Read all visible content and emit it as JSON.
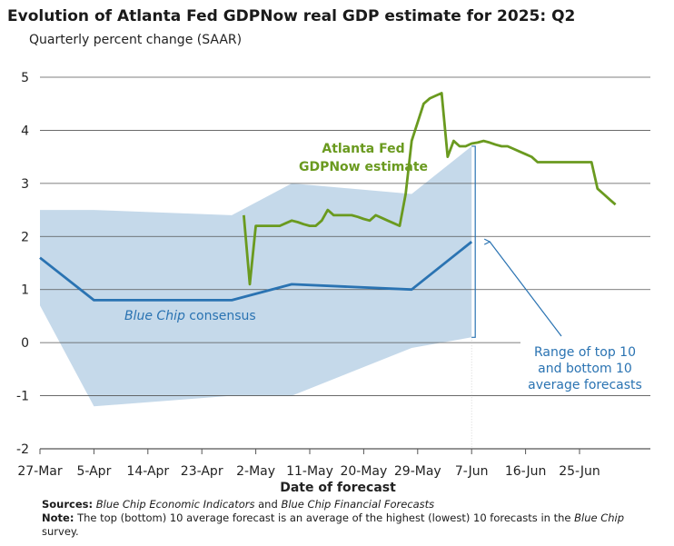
{
  "title": "Evolution of Atlanta Fed GDPNow real GDP estimate for 2025: Q2",
  "subtitle": "Quarterly percent change (SAAR)",
  "sources": {
    "label": "Sources:",
    "text1": "Blue Chip Economic Indicators",
    "and": " and ",
    "text2": "Blue Chip Financial Forecasts"
  },
  "note": {
    "label": "Note:",
    "text": " The top (bottom) 10 average forecast is an average of the highest (lowest) 10 forecasts in the ",
    "italic": "Blue Chip",
    "tail": " survey."
  },
  "colors": {
    "gdpnow": "#6a9a1f",
    "bluechip": "#2a73b2",
    "range": "#c5d9ea",
    "grid": "#555555"
  },
  "chart_data": {
    "type": "line",
    "xlabel": "Date of forecast",
    "ylabel": "",
    "ylim": [
      -2,
      5
    ],
    "yticks": [
      -2,
      -1,
      0,
      1,
      2,
      3,
      4,
      5
    ],
    "xticks": [
      "27-Mar",
      "5-Apr",
      "14-Apr",
      "23-Apr",
      "2-May",
      "11-May",
      "20-May",
      "29-May",
      "7-Jun",
      "16-Jun",
      "25-Jun"
    ],
    "x_start": "2025-03-27",
    "grid": "horizontal",
    "series": [
      {
        "name": "Atlanta Fed GDPNow estimate",
        "label_lines": [
          "Atlanta Fed",
          "GDPNow estimate"
        ],
        "x": [
          "2025-04-30",
          "2025-05-01",
          "2025-05-02",
          "2025-05-03",
          "2025-05-04",
          "2025-05-05",
          "2025-05-06",
          "2025-05-07",
          "2025-05-08",
          "2025-05-09",
          "2025-05-10",
          "2025-05-11",
          "2025-05-12",
          "2025-05-13",
          "2025-05-14",
          "2025-05-15",
          "2025-05-16",
          "2025-05-17",
          "2025-05-18",
          "2025-05-19",
          "2025-05-20",
          "2025-05-21",
          "2025-05-22",
          "2025-05-23",
          "2025-05-24",
          "2025-05-25",
          "2025-05-26",
          "2025-05-27",
          "2025-05-28",
          "2025-05-29",
          "2025-05-30",
          "2025-05-31",
          "2025-06-01",
          "2025-06-02",
          "2025-06-03",
          "2025-06-04",
          "2025-06-05",
          "2025-06-06",
          "2025-06-07",
          "2025-06-08",
          "2025-06-09",
          "2025-06-10",
          "2025-06-11",
          "2025-06-12",
          "2025-06-13",
          "2025-06-14",
          "2025-06-15",
          "2025-06-16",
          "2025-06-17",
          "2025-06-18",
          "2025-06-19",
          "2025-06-20",
          "2025-06-21",
          "2025-06-22",
          "2025-06-23",
          "2025-06-24",
          "2025-06-25",
          "2025-06-26",
          "2025-06-27",
          "2025-06-28",
          "2025-06-29",
          "2025-06-30",
          "2025-07-01"
        ],
        "values": [
          2.4,
          1.1,
          2.2,
          2.2,
          2.2,
          2.2,
          2.2,
          2.25,
          2.3,
          2.27,
          2.23,
          2.2,
          2.2,
          2.3,
          2.5,
          2.4,
          2.4,
          2.4,
          2.4,
          2.37,
          2.33,
          2.3,
          2.4,
          2.35,
          2.3,
          2.25,
          2.2,
          2.8,
          3.8,
          4.15,
          4.5,
          4.6,
          4.65,
          4.7,
          3.5,
          3.8,
          3.7,
          3.7,
          3.75,
          3.77,
          3.8,
          3.77,
          3.73,
          3.7,
          3.7,
          3.65,
          3.6,
          3.55,
          3.5,
          3.4,
          3.4,
          3.4,
          3.4,
          3.4,
          3.4,
          3.4,
          3.4,
          3.4,
          3.4,
          2.9,
          2.8,
          2.7,
          2.6
        ]
      },
      {
        "name": "Blue Chip consensus",
        "label_italic": "Blue Chip",
        "label_rest": " consensus",
        "x": [
          "2025-03-27",
          "2025-04-05",
          "2025-04-28",
          "2025-05-08",
          "2025-05-28",
          "2025-06-07"
        ],
        "values": [
          1.6,
          0.8,
          0.8,
          1.1,
          1.0,
          1.9
        ]
      }
    ],
    "range": {
      "name": "Range of top 10 and bottom 10 average forecasts",
      "label_lines": [
        "Range of top 10",
        "and bottom 10",
        "average forecasts"
      ],
      "x": [
        "2025-03-27",
        "2025-04-05",
        "2025-04-28",
        "2025-05-08",
        "2025-05-28",
        "2025-06-07"
      ],
      "upper": [
        2.5,
        2.5,
        2.4,
        3.0,
        2.8,
        3.7
      ],
      "lower": [
        0.7,
        -1.2,
        -1.0,
        -1.0,
        -0.1,
        0.1
      ]
    }
  }
}
